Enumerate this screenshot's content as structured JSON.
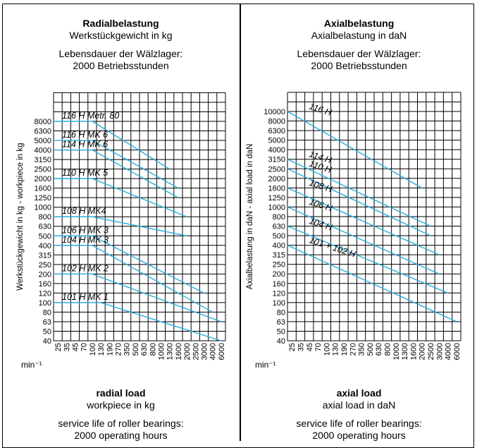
{
  "left": {
    "title_de": "Radialbelastung",
    "subtitle_de": "Werkstückgewicht in kg",
    "life_de_1": "Lebensdauer der Wälzlager:",
    "life_de_2": "2000 Betriebsstunden",
    "title_en": "radial load",
    "subtitle_en": "workpiece in kg",
    "life_en_1": "service life of roller bearings:",
    "life_en_2": "2000 operating hours"
  },
  "right": {
    "title_de": "Axialbelastung",
    "subtitle_de": "Axialbelastung in daN",
    "life_de_1": "Lebensdauer der Wälzlager:",
    "life_de_2": "2000 Betriebsstunden",
    "title_en": "axial load",
    "subtitle_en": "axial load in daN",
    "life_en_1": "service life of roller bearings:",
    "life_en_2": "2000 operating hours"
  },
  "colors": {
    "line": "#29aee0",
    "grid": "#000000"
  },
  "chart_data": [
    {
      "type": "line",
      "ylabel": "Werkstückgewicht in kg - workpiece in kg",
      "xunit": "min⁻¹",
      "x_ticks": [
        "25",
        "35",
        "45",
        "70",
        "100",
        "130",
        "190",
        "270",
        "350",
        "500",
        "630",
        "800",
        "1000",
        "1300",
        "1600",
        "2000",
        "2500",
        "3000",
        "4000",
        "6000"
      ],
      "y_ticks": [
        "40",
        "50",
        "63",
        "80",
        "100",
        "120",
        "160",
        "200",
        "250",
        "315",
        "400",
        "500",
        "630",
        "800",
        "1000",
        "1250",
        "1600",
        "2000",
        "2500",
        "3150",
        "4000",
        "5000",
        "6300",
        "8000"
      ],
      "series": [
        {
          "name": "116 H Metr. 80",
          "points": [
            {
              "x": "25",
              "y": "8000"
            },
            {
              "x": "100",
              "y": "8000"
            },
            {
              "x": "1300",
              "y": "2500"
            }
          ]
        },
        {
          "name": "116 H MK 6",
          "points": [
            {
              "x": "25",
              "y": "5000"
            },
            {
              "x": "100",
              "y": "5000"
            },
            {
              "x": "1600",
              "y": "1600"
            }
          ]
        },
        {
          "name": "114 H MK 6",
          "points": [
            {
              "x": "25",
              "y": "4000"
            },
            {
              "x": "100",
              "y": "4000"
            },
            {
              "x": "1600",
              "y": "1250"
            }
          ]
        },
        {
          "name": "110 H MK 5",
          "points": [
            {
              "x": "25",
              "y": "2000"
            },
            {
              "x": "100",
              "y": "2000"
            },
            {
              "x": "2000",
              "y": "800"
            }
          ]
        },
        {
          "name": "108 H MK4",
          "points": [
            {
              "x": "25",
              "y": "800"
            },
            {
              "x": "100",
              "y": "800"
            },
            {
              "x": "2000",
              "y": "500"
            }
          ]
        },
        {
          "name": "106 H MK 3",
          "points": [
            {
              "x": "25",
              "y": "500"
            },
            {
              "x": "100",
              "y": "500"
            },
            {
              "x": "3000",
              "y": "120"
            }
          ]
        },
        {
          "name": "104 H MK 3",
          "points": [
            {
              "x": "25",
              "y": "400"
            },
            {
              "x": "100",
              "y": "400"
            },
            {
              "x": "4000",
              "y": "80"
            }
          ]
        },
        {
          "name": "102 H MK 2",
          "points": [
            {
              "x": "25",
              "y": "200"
            },
            {
              "x": "100",
              "y": "200"
            },
            {
              "x": "6000",
              "y": "63"
            }
          ]
        },
        {
          "name": "101 H MK 1",
          "points": [
            {
              "x": "25",
              "y": "100"
            },
            {
              "x": "130",
              "y": "100"
            },
            {
              "x": "6000",
              "y": "40"
            }
          ]
        }
      ]
    },
    {
      "type": "line",
      "ylabel": "Axialbelastung in daN - axial load in daN",
      "xunit": "min⁻¹",
      "x_ticks": [
        "25",
        "35",
        "45",
        "70",
        "100",
        "130",
        "190",
        "270",
        "350",
        "500",
        "630",
        "800",
        "1000",
        "1300",
        "1600",
        "2000",
        "2500",
        "3000",
        "4000",
        "6000"
      ],
      "y_ticks": [
        "40",
        "50",
        "63",
        "80",
        "100",
        "120",
        "160",
        "200",
        "250",
        "315",
        "400",
        "500",
        "630",
        "800",
        "1000",
        "1250",
        "1600",
        "2000",
        "2500",
        "3150",
        "4000",
        "5000",
        "6300",
        "8000",
        "10000"
      ],
      "series": [
        {
          "name": "116 H",
          "points": [
            {
              "x": "25",
              "y": "10000"
            },
            {
              "x": "2000",
              "y": "1600"
            }
          ]
        },
        {
          "name": "114 H",
          "points": [
            {
              "x": "25",
              "y": "3150"
            },
            {
              "x": "2500",
              "y": "630"
            }
          ]
        },
        {
          "name": "110 H",
          "points": [
            {
              "x": "25",
              "y": "2500"
            },
            {
              "x": "2500",
              "y": "500"
            }
          ]
        },
        {
          "name": "108 H",
          "points": [
            {
              "x": "25",
              "y": "1600"
            },
            {
              "x": "3000",
              "y": "315"
            }
          ]
        },
        {
          "name": "106 H",
          "points": [
            {
              "x": "25",
              "y": "1000"
            },
            {
              "x": "3000",
              "y": "200"
            }
          ]
        },
        {
          "name": "104 H",
          "points": [
            {
              "x": "25",
              "y": "630"
            },
            {
              "x": "4000",
              "y": "120"
            }
          ]
        },
        {
          "name": "101 + 102 H",
          "points": [
            {
              "x": "25",
              "y": "400"
            },
            {
              "x": "6000",
              "y": "63"
            }
          ]
        }
      ]
    }
  ]
}
